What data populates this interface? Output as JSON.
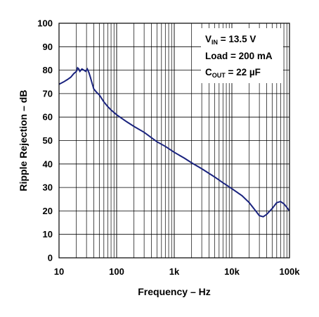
{
  "chart_data": {
    "type": "line",
    "xlabel": "Frequency – Hz",
    "ylabel": "Ripple Rejection – dB",
    "xscale": "log",
    "xlim": [
      10,
      100000
    ],
    "ylim": [
      0,
      100
    ],
    "grid": true,
    "x_tick_values": [
      10,
      100,
      1000,
      10000,
      100000
    ],
    "x_tick_labels": [
      "10",
      "100",
      "1k",
      "10k",
      "100k"
    ],
    "y_ticks": [
      0,
      10,
      20,
      30,
      40,
      50,
      60,
      70,
      80,
      90,
      100
    ],
    "line_color": "#1a237e",
    "annotation": {
      "lines": [
        {
          "main": "V",
          "sub": "IN",
          "rest": " = 13.5 V"
        },
        {
          "main": "Load = 200 mA",
          "sub": "",
          "rest": ""
        },
        {
          "main": "C",
          "sub": "OUT",
          "rest": " = 22 µF"
        }
      ]
    },
    "series": [
      {
        "x": [
          10,
          12,
          14,
          16,
          18,
          20,
          21,
          22,
          23,
          25,
          27,
          29,
          31,
          33,
          35,
          38,
          40,
          45,
          50,
          60,
          70,
          80,
          100,
          150,
          200,
          300,
          500,
          700,
          1000,
          1500,
          2000,
          3000,
          5000,
          7000,
          10000,
          15000,
          20000,
          25000,
          30000,
          35000,
          40000,
          50000,
          60000,
          70000,
          80000,
          90000,
          100000
        ],
        "y": [
          74,
          75,
          76,
          77,
          78.5,
          79.5,
          81,
          80.5,
          79.5,
          80.5,
          80,
          79.5,
          80.5,
          79,
          77,
          74,
          72,
          70.5,
          69.5,
          66.5,
          64.5,
          63,
          61,
          58,
          56,
          53.5,
          49.5,
          47.5,
          45,
          42.5,
          40.5,
          38,
          34.5,
          32,
          29.5,
          26.5,
          23.5,
          20.5,
          18,
          17.5,
          18.5,
          21,
          23.5,
          24,
          23,
          21.5,
          20
        ]
      }
    ]
  }
}
